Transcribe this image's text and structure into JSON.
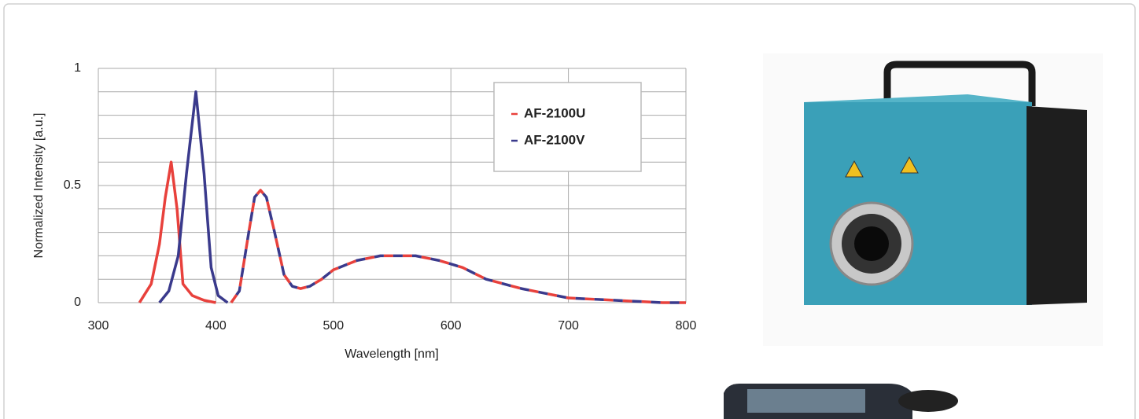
{
  "chart_data": {
    "type": "line",
    "x_label": "Wavelength [nm]",
    "y_label": "Normalized Intensity [a.u.]",
    "xlim": [
      300,
      800
    ],
    "xticks": [
      300,
      400,
      500,
      600,
      700,
      800
    ],
    "ylim": [
      0,
      1
    ],
    "yticks": [
      0,
      0.5,
      1
    ],
    "minor_yticks": [
      0.1,
      0.2,
      0.3,
      0.4,
      0.6,
      0.7,
      0.8,
      0.9
    ],
    "grid": true,
    "legend": "upper right",
    "series": [
      {
        "name": "AF-2100U",
        "color": "#e8413c",
        "segments": [
          {
            "dash": false,
            "x": [
              335,
              345,
              352,
              357,
              362,
              367,
              372,
              380,
              390,
              400
            ],
            "values": [
              0,
              0.08,
              0.25,
              0.45,
              0.6,
              0.4,
              0.08,
              0.03,
              0.01,
              0
            ]
          },
          {
            "dash": true,
            "x": [
              413,
              420,
              428,
              433,
              438,
              443,
              450,
              458,
              465,
              472,
              480,
              490,
              500,
              520,
              540,
              555,
              570,
              590,
              610,
              630,
              660,
              700,
              740,
              780,
              800
            ],
            "values": [
              0,
              0.05,
              0.3,
              0.45,
              0.48,
              0.45,
              0.3,
              0.12,
              0.07,
              0.06,
              0.07,
              0.1,
              0.14,
              0.18,
              0.2,
              0.2,
              0.2,
              0.18,
              0.15,
              0.1,
              0.06,
              0.02,
              0.01,
              0,
              0
            ]
          }
        ]
      },
      {
        "name": "AF-2100V",
        "color": "#3a3a8c",
        "segments": [
          {
            "dash": false,
            "x": [
              352,
              360,
              368,
              375,
              383,
              390,
              396,
              402,
              410
            ],
            "values": [
              0,
              0.05,
              0.2,
              0.55,
              0.9,
              0.55,
              0.15,
              0.03,
              0
            ]
          },
          {
            "dash": true,
            "x": [
              413,
              420,
              428,
              433,
              438,
              443,
              450,
              458,
              465,
              472,
              480,
              490,
              500,
              520,
              540,
              555,
              570,
              590,
              610,
              630,
              660,
              700,
              740,
              780,
              800
            ],
            "values": [
              0,
              0.05,
              0.3,
              0.45,
              0.48,
              0.45,
              0.3,
              0.12,
              0.07,
              0.06,
              0.07,
              0.1,
              0.14,
              0.18,
              0.2,
              0.2,
              0.2,
              0.18,
              0.15,
              0.1,
              0.06,
              0.02,
              0.01,
              0,
              0
            ]
          }
        ]
      }
    ]
  }
}
